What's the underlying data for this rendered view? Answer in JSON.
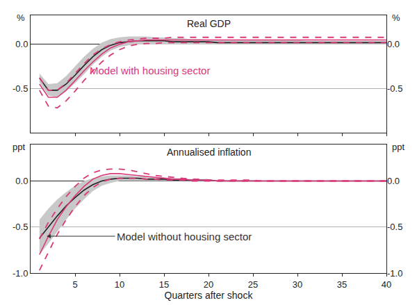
{
  "chart_data": [
    {
      "type": "line",
      "title": "Real GDP",
      "y_unit": "%",
      "x": [
        1,
        2,
        3,
        4,
        5,
        6,
        7,
        8,
        9,
        10,
        11,
        12,
        13,
        14,
        15,
        16,
        17,
        18,
        19,
        20,
        21,
        22,
        23,
        24,
        25,
        26,
        27,
        28,
        29,
        30,
        31,
        32,
        33,
        34,
        35,
        36,
        37,
        38,
        39,
        40
      ],
      "xlim": [
        0,
        40
      ],
      "xticks": [
        5,
        10,
        15,
        20,
        25,
        30,
        35,
        40
      ],
      "tick_labels": "y",
      "ylim": [
        -1.0,
        0.33
      ],
      "yticks": [
        {
          "value": 0,
          "label": "0.0"
        },
        {
          "value": -0.5,
          "label": "-0.5"
        }
      ],
      "grid": true,
      "series": [
        {
          "type": "band",
          "color": "#c8c8c8",
          "upper": [
            -0.33,
            -0.45,
            -0.44,
            -0.36,
            -0.25,
            -0.14,
            -0.05,
            0.02,
            0.06,
            0.08,
            0.09,
            0.09,
            0.09,
            0.08,
            0.08,
            0.07,
            0.07,
            0.06,
            0.06,
            0.05,
            0.05,
            0.05,
            0.05,
            0.05,
            0.05,
            0.05,
            0.05,
            0.05,
            0.05,
            0.05,
            0.04,
            0.04,
            0.04,
            0.04,
            0.04,
            0.04,
            0.04,
            0.04,
            0.04,
            0.04
          ],
          "lower": [
            -0.43,
            -0.58,
            -0.6,
            -0.53,
            -0.44,
            -0.34,
            -0.23,
            -0.14,
            -0.07,
            -0.03,
            -0.01,
            0,
            0,
            0,
            0,
            0,
            0,
            0,
            0,
            0,
            0,
            0,
            0,
            0,
            0,
            0,
            0,
            0,
            0,
            0,
            0,
            0,
            0,
            0,
            0,
            0,
            0,
            0,
            0,
            0
          ]
        },
        {
          "color": "#222222",
          "line_style": "solid",
          "values": [
            -0.38,
            -0.52,
            -0.52,
            -0.45,
            -0.35,
            -0.24,
            -0.14,
            -0.06,
            -0.01,
            0.02,
            0.03,
            0.04,
            0.04,
            0.04,
            0.04,
            0.03,
            0.03,
            0.03,
            0.03,
            0.03,
            0.02,
            0.02,
            0.02,
            0.02,
            0.02,
            0.02,
            0.02,
            0.02,
            0.02,
            0.02,
            0.02,
            0.02,
            0.02,
            0.02,
            0.02,
            0.02,
            0.02,
            0.02,
            0.02,
            0.02
          ]
        },
        {
          "color": "#d9387a",
          "line_style": "solid",
          "values": [
            -0.45,
            -0.6,
            -0.6,
            -0.52,
            -0.41,
            -0.3,
            -0.2,
            -0.11,
            -0.04,
            0,
            0.03,
            0.04,
            0.05,
            0.05,
            0.05,
            0.05,
            0.05,
            0.05,
            0.05,
            0.05,
            0.05,
            0.05,
            0.05,
            0.05,
            0.05,
            0.05,
            0.05,
            0.05,
            0.05,
            0.05,
            0.05,
            0.05,
            0.05,
            0.05,
            0.05,
            0.05,
            0.05,
            0.05,
            0.05,
            0.05
          ]
        },
        {
          "color": "#d9387a",
          "line_style": "dashed",
          "values": [
            -0.38,
            -0.52,
            -0.52,
            -0.44,
            -0.33,
            -0.22,
            -0.12,
            -0.05,
            0,
            0.03,
            0.05,
            0.06,
            0.07,
            0.07,
            0.07,
            0.08,
            0.08,
            0.08,
            0.08,
            0.08,
            0.08,
            0.08,
            0.08,
            0.08,
            0.08,
            0.08,
            0.08,
            0.08,
            0.08,
            0.08,
            0.08,
            0.08,
            0.08,
            0.08,
            0.08,
            0.08,
            0.08,
            0.08,
            0.08,
            0.08
          ]
        },
        {
          "color": "#d9387a",
          "line_style": "dashed",
          "values": [
            -0.52,
            -0.7,
            -0.72,
            -0.64,
            -0.53,
            -0.41,
            -0.3,
            -0.2,
            -0.12,
            -0.06,
            -0.02,
            0,
            0.01,
            0.01,
            0.02,
            0.02,
            0.02,
            0.02,
            0.02,
            0.02,
            0.02,
            0.02,
            0.02,
            0.02,
            0.02,
            0.02,
            0.02,
            0.02,
            0.02,
            0.02,
            0.02,
            0.02,
            0.02,
            0.02,
            0.02,
            0.02,
            0.02,
            0.02,
            0.02,
            0.02
          ]
        }
      ],
      "annotations": [
        {
          "text": "Model with housing sector",
          "x": 6.5,
          "y": -0.3,
          "color": "#d9387a"
        }
      ]
    },
    {
      "type": "line",
      "title": "Annualised inflation",
      "y_unit": "ppt",
      "x_label": "Quarters after shock",
      "x": [
        1,
        2,
        3,
        4,
        5,
        6,
        7,
        8,
        9,
        10,
        11,
        12,
        13,
        14,
        15,
        16,
        17,
        18,
        19,
        20,
        21,
        22,
        23,
        24,
        25,
        26,
        27,
        28,
        29,
        30,
        31,
        32,
        33,
        34,
        35,
        36,
        37,
        38,
        39,
        40
      ],
      "xlim": [
        0,
        40
      ],
      "xticks": [
        5,
        10,
        15,
        20,
        25,
        30,
        35,
        40
      ],
      "ylim": [
        -1.0,
        0.4
      ],
      "yticks": [
        {
          "value": 0,
          "label": "0.0"
        },
        {
          "value": -0.5,
          "label": "-0.5"
        },
        {
          "value": -1.0,
          "label": "-1.0"
        }
      ],
      "grid": true,
      "series": [
        {
          "type": "band",
          "color": "#c8c8c8",
          "upper": [
            -0.42,
            -0.3,
            -0.2,
            -0.12,
            -0.05,
            0,
            0.03,
            0.05,
            0.06,
            0.06,
            0.06,
            0.05,
            0.05,
            0.04,
            0.04,
            0.03,
            0.03,
            0.02,
            0.02,
            0.02,
            0.01,
            0.01,
            0.01,
            0.01,
            0.01,
            0,
            0,
            0,
            0,
            0,
            0,
            0,
            0,
            0,
            0,
            0,
            0,
            0,
            0,
            0
          ],
          "lower": [
            -0.8,
            -0.68,
            -0.55,
            -0.42,
            -0.3,
            -0.2,
            -0.11,
            -0.05,
            -0.02,
            0,
            0,
            0,
            0,
            0,
            0,
            0,
            0,
            0,
            0,
            0,
            0,
            0,
            0,
            0,
            0,
            0,
            0,
            0,
            0,
            0,
            0,
            0,
            0,
            0,
            0,
            0,
            0,
            0,
            0,
            0
          ]
        },
        {
          "color": "#222222",
          "line_style": "solid",
          "values": [
            -0.62,
            -0.5,
            -0.38,
            -0.27,
            -0.18,
            -0.1,
            -0.04,
            0,
            0.02,
            0.03,
            0.03,
            0.03,
            0.02,
            0.02,
            0.02,
            0.01,
            0.01,
            0.01,
            0.01,
            0.01,
            0,
            0,
            0,
            0,
            0,
            0,
            0,
            0,
            0,
            0,
            0,
            0,
            0,
            0,
            0,
            0,
            0,
            0,
            0,
            0
          ]
        },
        {
          "color": "#d9387a",
          "line_style": "solid",
          "values": [
            -0.8,
            -0.6,
            -0.42,
            -0.28,
            -0.16,
            -0.06,
            0.02,
            0.06,
            0.08,
            0.08,
            0.07,
            0.06,
            0.05,
            0.04,
            0.03,
            0.02,
            0.02,
            0.01,
            0.01,
            0.01,
            0,
            0,
            0,
            0,
            0,
            0,
            0,
            0,
            0,
            0,
            0,
            0,
            0,
            0,
            0,
            0,
            0,
            0,
            0,
            0
          ]
        },
        {
          "color": "#d9387a",
          "line_style": "dashed",
          "values": [
            -0.63,
            -0.45,
            -0.3,
            -0.17,
            -0.06,
            0.03,
            0.09,
            0.12,
            0.13,
            0.13,
            0.12,
            0.1,
            0.08,
            0.06,
            0.05,
            0.04,
            0.03,
            0.02,
            0.02,
            0.01,
            0.01,
            0.01,
            0.01,
            0.01,
            0.01,
            0,
            0,
            0,
            0,
            0,
            0,
            0,
            0,
            0,
            0,
            0,
            0,
            0,
            0,
            0
          ]
        },
        {
          "color": "#d9387a",
          "line_style": "dashed",
          "values": [
            -0.97,
            -0.78,
            -0.58,
            -0.42,
            -0.28,
            -0.16,
            -0.07,
            -0.01,
            0.02,
            0.03,
            0.03,
            0.03,
            0.02,
            0.02,
            0.01,
            0.01,
            0.01,
            0,
            0,
            0,
            0,
            0,
            0,
            0,
            0,
            0,
            0,
            0,
            0,
            0,
            0,
            0,
            0,
            0,
            0,
            0,
            0,
            0,
            0,
            0
          ]
        }
      ],
      "annotations": [
        {
          "text": "Model without housing sector",
          "x": 9.5,
          "y": -0.6,
          "arrow_x": 1.8,
          "arrow_y": -0.6,
          "color": "#333333"
        }
      ]
    }
  ]
}
